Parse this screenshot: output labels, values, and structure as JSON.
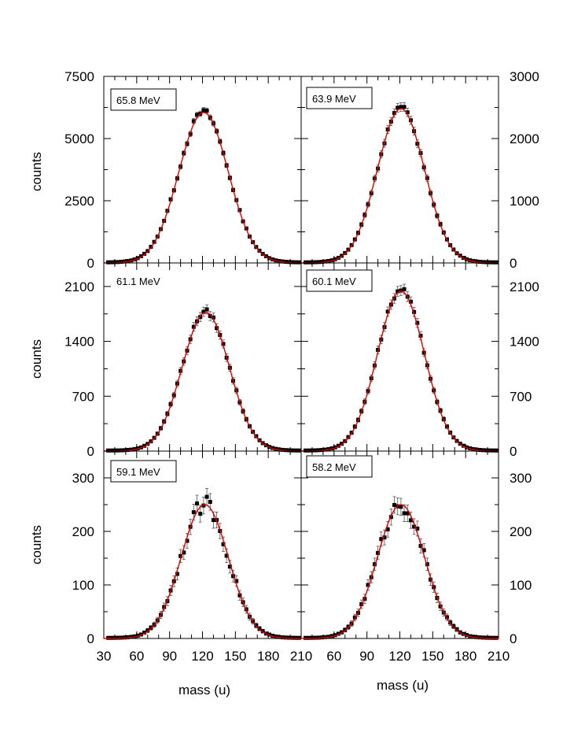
{
  "figure": {
    "xlabel": "mass (u)",
    "ylabel": "counts"
  },
  "chart_data": [
    {
      "type": "scatter",
      "panel": "top-left",
      "label": "65.8 MeV",
      "xlabel": "",
      "ylabel": "counts",
      "xlim": [
        30,
        210
      ],
      "ylim": [
        0,
        7500
      ],
      "yticks": [
        0,
        2500,
        5000,
        7500
      ],
      "fit": {
        "type": "gaussian",
        "amplitude": 6050,
        "center": 121,
        "sigma": 22.5,
        "color": "#e00000"
      },
      "data_color": "#000000"
    },
    {
      "type": "scatter",
      "panel": "top-right",
      "label": "63.9 MeV",
      "xlabel": "",
      "ylabel": "",
      "xlim": [
        30,
        210
      ],
      "ylim": [
        0,
        3000
      ],
      "yticks": [
        0,
        1000,
        2000,
        3000
      ],
      "fit": {
        "type": "gaussian",
        "amplitude": 2480,
        "center": 121,
        "sigma": 21.5,
        "color": "#e00000"
      },
      "data_color": "#000000"
    },
    {
      "type": "scatter",
      "panel": "middle-left",
      "label": "61.1 MeV",
      "xlabel": "",
      "ylabel": "counts",
      "xlim": [
        30,
        210
      ],
      "ylim": [
        0,
        2400
      ],
      "yticks": [
        0,
        700,
        1400,
        2100
      ],
      "fit": {
        "type": "gaussian",
        "amplitude": 1770,
        "center": 123,
        "sigma": 21.5,
        "color": "#e00000"
      },
      "data_color": "#000000"
    },
    {
      "type": "scatter",
      "panel": "middle-right",
      "label": "60.1 MeV",
      "xlabel": "",
      "ylabel": "",
      "xlim": [
        30,
        210
      ],
      "ylim": [
        0,
        2400
      ],
      "yticks": [
        0,
        700,
        1400,
        2100
      ],
      "fit": {
        "type": "gaussian",
        "amplitude": 2040,
        "center": 121,
        "sigma": 21.5,
        "color": "#e00000"
      },
      "data_color": "#000000"
    },
    {
      "type": "scatter",
      "panel": "bottom-left",
      "label": "59.1 MeV",
      "xlabel": "mass (u)",
      "ylabel": "counts",
      "xlim": [
        30,
        210
      ],
      "ylim": [
        0,
        350
      ],
      "yticks": [
        0,
        100,
        200,
        300
      ],
      "xticks": [
        30,
        60,
        90,
        120,
        150,
        180,
        210
      ],
      "fit": {
        "type": "gaussian",
        "amplitude": 250,
        "center": 122,
        "sigma": 21.5,
        "color": "#e00000"
      },
      "data_color": "#000000"
    },
    {
      "type": "scatter",
      "panel": "bottom-right",
      "label": "58.2 MeV",
      "xlabel": "mass (u)",
      "ylabel": "",
      "xlim": [
        30,
        210
      ],
      "ylim": [
        0,
        350
      ],
      "yticks": [
        0,
        100,
        200,
        300
      ],
      "xticks": [
        60,
        90,
        120,
        150,
        180,
        210
      ],
      "fit": {
        "type": "gaussian",
        "amplitude": 250,
        "center": 121,
        "sigma": 21.5,
        "color": "#e00000"
      },
      "data_color": "#000000"
    }
  ]
}
